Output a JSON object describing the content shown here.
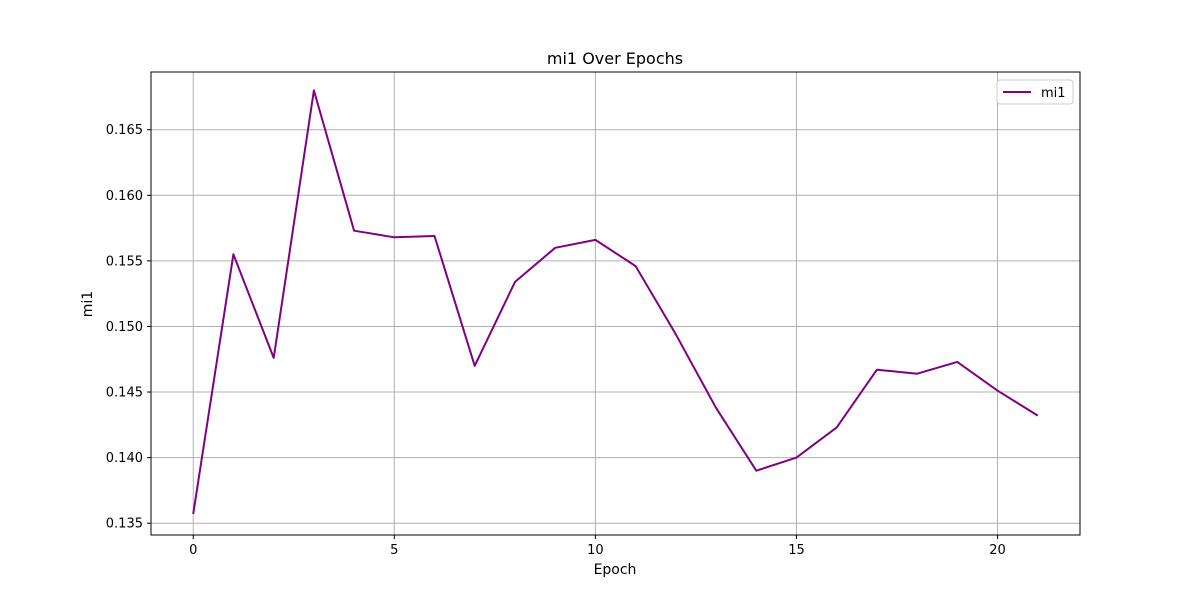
{
  "chart_data": {
    "type": "line",
    "title": "mi1 Over Epochs",
    "xlabel": "Epoch",
    "ylabel": "mi1",
    "xlim": [
      -1.05,
      22.05
    ],
    "ylim": [
      0.1341,
      0.1694
    ],
    "xticks": [
      0,
      5,
      10,
      15,
      20
    ],
    "xtick_labels": [
      "0",
      "5",
      "10",
      "15",
      "20"
    ],
    "yticks": [
      0.135,
      0.14,
      0.145,
      0.15,
      0.155,
      0.16,
      0.165
    ],
    "ytick_labels": [
      "0.135",
      "0.140",
      "0.145",
      "0.150",
      "0.155",
      "0.160",
      "0.165"
    ],
    "grid": true,
    "legend_position": "top-right",
    "series": [
      {
        "name": "mi1",
        "color": "#800080",
        "x": [
          0,
          1,
          2,
          3,
          4,
          5,
          6,
          7,
          8,
          9,
          10,
          11,
          12,
          13,
          14,
          15,
          16,
          17,
          18,
          19,
          20,
          21
        ],
        "y": [
          0.1357,
          0.1555,
          0.1476,
          0.168,
          0.1573,
          0.1568,
          0.1569,
          0.147,
          0.1534,
          0.156,
          0.1566,
          0.1546,
          0.1494,
          0.1438,
          0.139,
          0.14,
          0.1423,
          0.1467,
          0.1464,
          0.1473,
          0.1451,
          0.1432
        ]
      }
    ]
  }
}
